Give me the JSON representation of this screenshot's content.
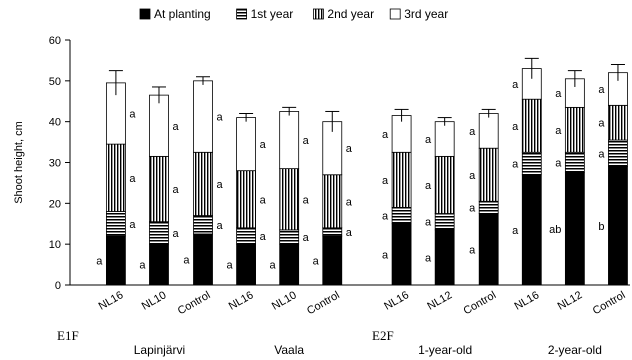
{
  "chart_data": {
    "type": "bar",
    "stacked": true,
    "title": "",
    "ylabel": "Shoot height, cm",
    "xlabel": "",
    "ylim": [
      0,
      60
    ],
    "yticks": [
      0,
      10,
      20,
      30,
      40,
      50,
      60
    ],
    "grid": false,
    "legend_position": "top",
    "legend": [
      "At planting",
      "1st year",
      "2nd year",
      "3rd year"
    ],
    "series": [
      {
        "name": "At planting",
        "values": [
          12,
          10,
          12.5,
          10,
          10,
          12,
          15,
          13.5,
          17.5,
          27,
          27.5,
          29
        ]
      },
      {
        "name": "1st year",
        "values": [
          6,
          5.5,
          4.5,
          4,
          3.5,
          2,
          4,
          4,
          3,
          5.5,
          5,
          6.5
        ]
      },
      {
        "name": "2nd year",
        "values": [
          16.5,
          16,
          15.5,
          14,
          15,
          13,
          13.5,
          14,
          13,
          13,
          11,
          8.5
        ]
      },
      {
        "name": "3rd year",
        "values": [
          15,
          15,
          17.5,
          13,
          14,
          13,
          9,
          8.5,
          8.5,
          7.5,
          7,
          8
        ]
      }
    ],
    "errors": [
      3,
      2,
      1,
      1,
      1,
      2.5,
      1.5,
      1,
      1,
      2.5,
      2,
      2
    ],
    "categories": [
      "NL16",
      "NL10",
      "Control",
      "NL16",
      "NL10",
      "Control",
      "NL16",
      "NL12",
      "Control",
      "NL16",
      "NL12",
      "Control"
    ],
    "significance": [
      [
        "a",
        "a",
        "a",
        "a"
      ],
      [
        "a",
        "a",
        "a",
        "a"
      ],
      [
        "a",
        "a",
        "a",
        "a"
      ],
      [
        "a",
        "a",
        "a",
        "a"
      ],
      [
        "a",
        "a",
        "a",
        "a"
      ],
      [
        "a",
        "a",
        "a",
        "a"
      ],
      [
        "a",
        "a",
        "a",
        "a"
      ],
      [
        "a",
        "a",
        "a",
        "a"
      ],
      [
        "a",
        "a",
        "a",
        "a"
      ],
      [
        "a",
        "a",
        "a",
        "a"
      ],
      [
        "ab",
        "a",
        "a",
        "a"
      ],
      [
        "b",
        "a",
        "a",
        "a"
      ]
    ],
    "group_labels": [
      "Lapinjärvi",
      "Vaala",
      "1-year-old",
      "2-year-old"
    ],
    "panel_labels": [
      "E1F",
      "E2F"
    ]
  }
}
